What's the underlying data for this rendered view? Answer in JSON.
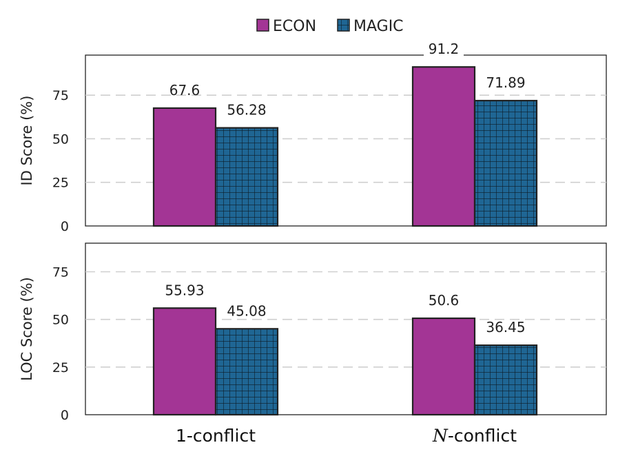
{
  "chart_data": {
    "type": "bar",
    "legend": {
      "placement": "top-center"
    },
    "categories": [
      "1-conflict",
      "N-conflict"
    ],
    "category_labels": [
      {
        "prefix": "",
        "italic": "",
        "suffix": "1-conflict"
      },
      {
        "prefix": "",
        "italic": "N",
        "suffix": "-conflict"
      }
    ],
    "series": [
      {
        "name": "ECON",
        "color": "#A33595",
        "pattern": "solid"
      },
      {
        "name": "MAGIC",
        "color": "#1F6694",
        "pattern": "grid"
      }
    ],
    "panels": [
      {
        "ylabel": "ID Score (%)",
        "ylim": [
          0,
          98
        ],
        "yticks": [
          0,
          25,
          50,
          75
        ],
        "grid": true,
        "values": {
          "ECON": [
            67.6,
            91.2
          ],
          "MAGIC": [
            56.28,
            71.89
          ]
        },
        "labels": {
          "ECON": [
            "67.6",
            "91.2"
          ],
          "MAGIC": [
            "56.28",
            "71.89"
          ]
        }
      },
      {
        "ylabel": "LOC Score (%)",
        "ylim": [
          0,
          90
        ],
        "yticks": [
          0,
          25,
          50,
          75
        ],
        "grid": true,
        "values": {
          "ECON": [
            55.93,
            50.6
          ],
          "MAGIC": [
            45.08,
            36.45
          ]
        },
        "labels": {
          "ECON": [
            "55.93",
            "50.6"
          ],
          "MAGIC": [
            "45.08",
            "36.45"
          ]
        }
      }
    ]
  }
}
